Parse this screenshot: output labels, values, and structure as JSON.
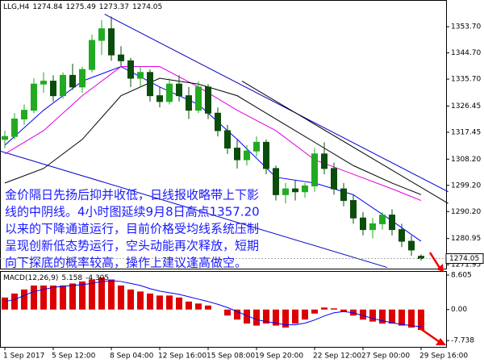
{
  "chart_data": [
    {
      "type": "candlestick",
      "symbol": "LLG,H4",
      "categories": [
        "1 Sep 2017",
        null,
        null,
        null,
        null,
        "5 Sep 12:00",
        null,
        null,
        null,
        null,
        null,
        "8 Sep 04:00",
        null,
        null,
        null,
        null,
        "12 Sep 16:00",
        null,
        null,
        null,
        null,
        "15 Sep 08:00",
        null,
        null,
        null,
        null,
        "19 Sep 20:00",
        null,
        null,
        null,
        null,
        null,
        "22 Sep 12:00",
        null,
        null,
        null,
        null,
        "27 Sep 00:00",
        null,
        null,
        null,
        null,
        null,
        "29 Sep 16:00"
      ],
      "open": [
        1315,
        1316,
        1322,
        1325,
        1334,
        1335,
        1330,
        1337,
        1333,
        1339,
        1349,
        1353,
        1344,
        1342,
        1336,
        1338,
        1330,
        1328,
        1334,
        1330,
        1325,
        1333,
        1324,
        1318,
        1312,
        1308,
        1311,
        1314,
        1305,
        1296,
        1298,
        1297,
        1299,
        1310,
        1305,
        1298,
        1294,
        1288,
        1284,
        1286,
        1289,
        1284,
        1280,
        1274.84
      ],
      "high": [
        1318,
        1324,
        1327,
        1336,
        1338,
        1337,
        1338,
        1341,
        1340,
        1351,
        1356,
        1357.2,
        1347,
        1343,
        1340,
        1339,
        1333,
        1336,
        1337,
        1333,
        1335,
        1334,
        1326,
        1320,
        1315,
        1313,
        1316,
        1315,
        1306,
        1300,
        1301,
        1300,
        1312,
        1314,
        1307,
        1300,
        1296,
        1290,
        1288,
        1290,
        1291,
        1286,
        1282,
        1275.49
      ],
      "low": [
        1312,
        1315,
        1320,
        1324,
        1331,
        1328,
        1329,
        1332,
        1331,
        1338,
        1344,
        1342,
        1340,
        1333,
        1333,
        1328,
        1326,
        1327,
        1328,
        1322,
        1324,
        1322,
        1316,
        1310,
        1305,
        1306,
        1309,
        1303,
        1294,
        1293,
        1294,
        1295,
        1297,
        1303,
        1296,
        1292,
        1286,
        1282,
        1281,
        1284,
        1282,
        1278,
        1275,
        1273.37
      ],
      "close": [
        1316,
        1322,
        1325,
        1334,
        1335,
        1330,
        1337,
        1333,
        1339,
        1349,
        1353,
        1344,
        1342,
        1336,
        1338,
        1330,
        1328,
        1334,
        1330,
        1325,
        1333,
        1324,
        1318,
        1312,
        1308,
        1311,
        1314,
        1305,
        1296,
        1298,
        1297,
        1299,
        1310,
        1305,
        1298,
        1294,
        1288,
        1284,
        1286,
        1289,
        1284,
        1280,
        1277,
        1274.05
      ],
      "up_color": "#22aa22",
      "down_color": "#0b4d0b",
      "lines": [
        {
          "color": "#0000ff",
          "x": [
            0,
            4,
            8,
            12,
            16,
            20,
            24,
            28,
            32,
            36,
            40,
            43
          ],
          "values": [
            1313,
            1325,
            1335,
            1340,
            1333,
            1327,
            1315,
            1302,
            1300,
            1296,
            1287,
            1280
          ]
        },
        {
          "color": "#e000e0",
          "x": [
            0,
            4,
            8,
            12,
            16,
            20,
            24,
            28,
            32,
            36,
            40,
            43
          ],
          "values": [
            1310,
            1318,
            1330,
            1340,
            1340,
            1333,
            1325,
            1318,
            1308,
            1303,
            1298,
            1294
          ]
        },
        {
          "color": "#000000",
          "x": [
            0,
            4,
            8,
            12,
            16,
            20,
            24,
            28,
            32,
            36,
            40,
            43
          ],
          "values": [
            1300,
            1305,
            1315,
            1330,
            1336,
            1334,
            1330,
            1322,
            1314,
            1306,
            1300,
            1296
          ]
        }
      ],
      "trendlines": [
        {
          "color": "#0000cd",
          "x": [
            10.3,
            45.8
          ],
          "values": [
            1358,
            1297
          ]
        },
        {
          "color": "#0000cd",
          "x": [
            -0.5,
            39.5
          ],
          "values": [
            1311,
            1271
          ]
        },
        {
          "color": "#000000",
          "x": [
            24.5,
            45.8
          ],
          "values": [
            1335,
            1293
          ]
        }
      ],
      "ylim": [
        1270.6,
        1362.6
      ],
      "yticks": [
        {
          "value": 1353.7,
          "label": "1353.70"
        },
        {
          "value": 1344.7,
          "label": "1344.70"
        },
        {
          "value": 1335.7,
          "label": "1335.70"
        },
        {
          "value": 1326.45,
          "label": "1326.45"
        },
        {
          "value": 1317.45,
          "label": "1317.45"
        },
        {
          "value": 1308.2,
          "label": "1308.20"
        },
        {
          "value": 1299.2,
          "label": "1299.20"
        },
        {
          "value": 1290.2,
          "label": "1290.20"
        },
        {
          "value": 1280.95,
          "label": "1280.95"
        },
        {
          "value": 1271.95,
          "label": "1271.95"
        }
      ],
      "annotation": [
        "金价隔日先扬后抑并收低，日线报收略带上下影",
        "线的中阴线。4小时图延续9月8日高点1357.20",
        "以来的下降通道运行，目前价格受均线系统压制",
        "呈现创新低态势运行，空头动能再次释放，短期",
        "向下探底的概率较高，操作上建议逢高做空。"
      ]
    },
    {
      "type": "macd",
      "title": "MACD(12,26,9)",
      "macd_value": 5.158,
      "histogram": {
        "color": "#dd0000",
        "values": [
          3,
          4,
          5,
          6,
          6,
          6,
          6,
          6.5,
          7,
          7.5,
          8,
          7.5,
          6,
          5,
          4.5,
          4,
          3.5,
          3.5,
          3,
          2,
          1.5,
          1,
          0,
          -1.5,
          -2.5,
          -3.5,
          -4,
          -3.5,
          -4,
          -4.5,
          -3.5,
          -2.5,
          -1,
          0.5,
          0.3,
          -0.5,
          -1.5,
          -2.5,
          -3,
          -3.5,
          -3.5,
          -4,
          -4.5,
          -5.1
        ]
      },
      "signal": {
        "color": "#0000ff",
        "values": [
          2,
          2.5,
          3.5,
          4.5,
          5,
          5.5,
          5.8,
          6,
          6.2,
          6.5,
          7,
          7.2,
          7,
          6.5,
          6,
          5.2,
          4.6,
          4.2,
          3.8,
          3.2,
          2.6,
          2,
          1.3,
          0.5,
          -0.5,
          -1.5,
          -2.5,
          -3,
          -3.4,
          -3.8,
          -3.8,
          -3.4,
          -2.6,
          -1.6,
          -0.8,
          -0.5,
          -0.8,
          -1.5,
          -2.2,
          -2.8,
          -3.3,
          -3.7,
          -4,
          -4.305
        ]
      },
      "ylim": [
        -9.3,
        9.4
      ],
      "yticks": [
        8.605,
        {
          "value": 0,
          "label": "0.00"
        },
        -7.738
      ]
    }
  ]
}
